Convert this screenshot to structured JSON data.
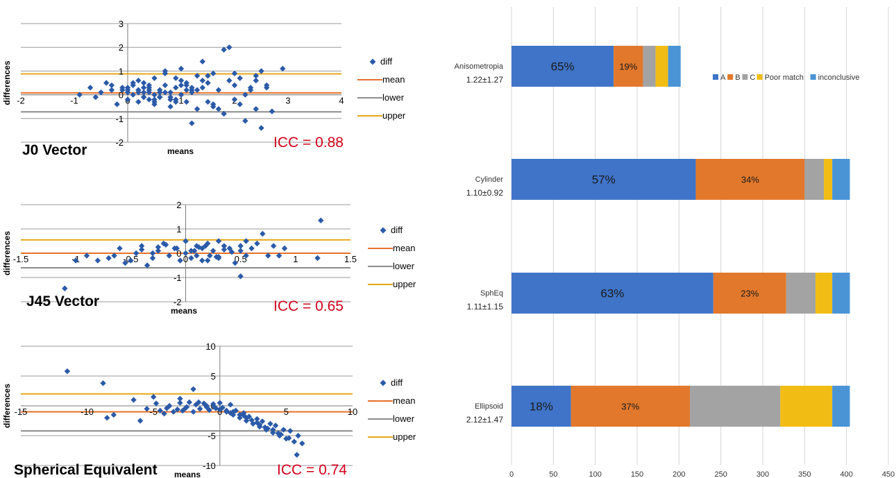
{
  "chart_data": [
    {
      "type": "scatter",
      "title": "J0 Vector",
      "xlabel": "means",
      "ylabel": "differences",
      "annotation": "ICC = 0.88",
      "xlim": [
        -2,
        4
      ],
      "ylim": [
        -2,
        3
      ],
      "xticks": [
        "-2",
        "-1",
        "0",
        "1",
        "2",
        "3",
        "4"
      ],
      "yticks": [
        "-2",
        "-1",
        "0",
        "1",
        "2",
        "3"
      ],
      "legend": [
        "diff",
        "mean",
        "lower",
        "upper"
      ],
      "lines": {
        "mean": 0.08,
        "lower": -0.72,
        "upper": 0.88
      },
      "colors": {
        "diff": "#2b5aa8",
        "mean": "#e8702a",
        "lower": "#8c8c8c",
        "upper": "#e6a817"
      },
      "x": [
        -0.9,
        -0.7,
        -0.6,
        -0.4,
        -0.3,
        -0.2,
        -0.1,
        0.0,
        0.0,
        0.1,
        0.1,
        0.2,
        0.2,
        0.2,
        0.3,
        0.3,
        0.3,
        0.4,
        0.4,
        0.5,
        0.5,
        0.5,
        0.6,
        0.6,
        0.7,
        0.7,
        0.8,
        0.8,
        0.9,
        0.9,
        1.0,
        1.0,
        1.0,
        1.1,
        1.1,
        1.2,
        1.2,
        1.3,
        1.3,
        1.4,
        1.4,
        1.5,
        1.6,
        1.6,
        1.7,
        1.8,
        1.9,
        2.0,
        2.0,
        2.1,
        2.2,
        2.3,
        2.4,
        2.4,
        2.5,
        2.6,
        2.7,
        2.9,
        1.0,
        1.1,
        0.6,
        0.3,
        -0.3,
        0.2,
        0.4,
        0.8,
        1.2,
        1.5,
        1.8,
        2.1,
        2.4,
        2.5,
        0.9,
        1.3,
        0.7,
        -0.5,
        0.0,
        0.1,
        0.5,
        1.9,
        1.0,
        1.6,
        0.2,
        0.4,
        0.8,
        1.4,
        2.2,
        0.3,
        0.6,
        1.1,
        -0.1,
        2.3,
        2.6,
        0.5,
        0.9,
        1.2,
        1.7,
        0.0,
        0.4,
        0.7,
        1.5,
        2.0
      ],
      "y": [
        0.0,
        0.3,
        -0.1,
        0.5,
        0.2,
        -0.4,
        0.3,
        0.1,
        -0.2,
        0.4,
        0.0,
        0.2,
        -0.3,
        0.6,
        0.1,
        -0.1,
        0.5,
        0.3,
        -0.2,
        0.0,
        0.7,
        -0.4,
        0.2,
        -0.1,
        0.4,
        0.9,
        0.1,
        -0.5,
        0.3,
        -0.2,
        0.6,
        0.0,
        1.1,
        -0.3,
        0.4,
        0.2,
        -1.2,
        0.8,
        -0.6,
        1.4,
        0.3,
        0.5,
        -0.4,
        0.9,
        0.2,
        -0.8,
        0.6,
        0.4,
        -0.2,
        0.7,
        -1.1,
        0.3,
        0.8,
        -0.6,
        1.0,
        0.4,
        -0.7,
        1.1,
        0.0,
        0.2,
        0.1,
        -0.1,
        0.4,
        0.2,
        0.1,
        -0.1,
        0.3,
        0.8,
        1.9,
        -0.4,
        0.6,
        -1.4,
        -0.3,
        0.2,
        1.0,
        0.1,
        0.3,
        0.5,
        -0.3,
        2.0,
        0.4,
        -0.5,
        0.1,
        0.2,
        -0.2,
        0.6,
        0.0,
        0.3,
        -0.1,
        0.5,
        0.2,
        0.2,
        0.3,
        -0.2,
        0.7,
        0.1,
        -0.6,
        0.2,
        0.4,
        0.1,
        -0.3,
        0.9
      ]
    },
    {
      "type": "scatter",
      "title": "J45 Vector",
      "xlabel": "means",
      "ylabel": "differences",
      "annotation": "ICC = 0.65",
      "xlim": [
        -1.5,
        1.5
      ],
      "ylim": [
        -2,
        2
      ],
      "xticks": [
        "-1.5",
        "-1",
        "-0.5",
        "0",
        "0.5",
        "1",
        "1.5"
      ],
      "yticks": [
        "-2",
        "-1",
        "0",
        "1",
        "2"
      ],
      "legend": [
        "diff",
        "mean",
        "lower",
        "upper"
      ],
      "lines": {
        "mean": 0.0,
        "lower": -0.6,
        "upper": 0.55
      },
      "colors": {
        "diff": "#2b5aa8",
        "mean": "#e8702a",
        "lower": "#8c8c8c",
        "upper": "#e6a817"
      },
      "x": [
        -1.0,
        -0.9,
        -0.8,
        -0.7,
        -0.65,
        -0.6,
        -0.55,
        -0.5,
        -0.45,
        -0.4,
        -0.35,
        -0.3,
        -0.25,
        -0.2,
        -0.15,
        -0.1,
        -0.05,
        0.0,
        0.0,
        0.05,
        0.1,
        0.1,
        0.15,
        0.2,
        0.2,
        0.25,
        0.3,
        0.3,
        0.35,
        0.4,
        0.45,
        0.5,
        0.5,
        0.55,
        0.6,
        0.7,
        0.75,
        0.8,
        0.85,
        0.9,
        1.2,
        1.23,
        -1.1,
        0.5,
        -0.3,
        0.05,
        0.12,
        0.22,
        0.35,
        -0.18,
        0.28,
        0.65,
        -0.08,
        0.15,
        -0.4,
        0.42,
        0.08,
        0.18,
        0.3,
        -0.25,
        0.55
      ],
      "y": [
        -0.3,
        -0.1,
        -0.3,
        -0.2,
        -0.1,
        0.2,
        -0.4,
        -0.3,
        0.0,
        0.3,
        -0.5,
        -0.2,
        0.1,
        0.4,
        -0.1,
        0.2,
        -0.3,
        0.0,
        0.5,
        -0.2,
        0.3,
        -0.1,
        0.2,
        0.4,
        -0.3,
        0.1,
        0.5,
        -0.2,
        0.3,
        0.2,
        -0.4,
        0.1,
        0.3,
        -0.1,
        0.2,
        0.8,
        -0.1,
        0.3,
        -0.1,
        0.2,
        -0.2,
        1.35,
        -1.45,
        -0.95,
        0.0,
        0.1,
        0.25,
        -0.1,
        0.15,
        0.35,
        -0.15,
        0.4,
        0.2,
        -0.3,
        0.15,
        0.05,
        0.1,
        0.3,
        -0.15,
        0.25,
        0.5
      ]
    },
    {
      "type": "scatter",
      "title": "Spherical Equivalent",
      "xlabel": "means",
      "ylabel": "differences",
      "annotation": "ICC = 0.74",
      "xlim": [
        -15,
        10
      ],
      "ylim": [
        -10,
        10
      ],
      "xticks": [
        "-15",
        "-10",
        "-5",
        "0",
        "5",
        "10"
      ],
      "yticks": [
        "-10",
        "-5",
        "0",
        "5",
        "10"
      ],
      "legend": [
        "diff",
        "mean",
        "lower",
        "upper"
      ],
      "lines": {
        "mean": -1.0,
        "lower": -4.2,
        "upper": 2.0
      },
      "colors": {
        "diff": "#2b5aa8",
        "mean": "#e8702a",
        "lower": "#8c8c8c",
        "upper": "#e6a817"
      },
      "x": [
        -11.5,
        -8.8,
        -8.5,
        -8.0,
        -6.5,
        -5.5,
        -5.0,
        -4.5,
        -4.2,
        -4.0,
        -3.8,
        -3.5,
        -3.2,
        -3.0,
        -2.8,
        -2.5,
        -2.3,
        -2.0,
        -1.8,
        -1.5,
        -1.2,
        -1.0,
        -0.8,
        -0.5,
        -0.3,
        0.0,
        0.2,
        0.5,
        0.8,
        1.0,
        1.2,
        1.5,
        1.8,
        2.0,
        2.2,
        2.5,
        2.8,
        3.0,
        3.2,
        3.5,
        3.8,
        4.0,
        4.2,
        4.5,
        4.8,
        5.0,
        5.3,
        5.6,
        5.9,
        6.2,
        -2.0,
        -6.0,
        -3.0,
        0.5,
        1.5,
        2.8,
        3.6,
        4.4,
        5.2,
        5.8,
        -1.0,
        0.0,
        1.0,
        2.0,
        3.0,
        4.0,
        -4.8,
        -2.6,
        -0.4,
        0.8,
        2.4,
        3.4,
        4.6,
        1.8,
        -1.6
      ],
      "y": [
        5.8,
        3.8,
        -2.0,
        -1.5,
        1.0,
        -0.5,
        1.5,
        -0.8,
        -1.3,
        -0.4,
        0.0,
        -1.0,
        -0.6,
        0.5,
        -0.8,
        -0.2,
        0.6,
        -1.0,
        0.2,
        -0.5,
        0.4,
        -0.2,
        -0.7,
        0.3,
        -0.4,
        0.5,
        -0.3,
        -1.0,
        0.2,
        -1.5,
        -0.8,
        -2.0,
        -1.2,
        -2.5,
        -1.8,
        -3.0,
        -2.2,
        -3.5,
        -2.6,
        -4.0,
        -3.0,
        -4.5,
        -3.3,
        -5.0,
        -4.0,
        -5.5,
        -4.2,
        -6.0,
        -5.0,
        -6.3,
        2.8,
        -2.5,
        1.2,
        -0.8,
        -1.5,
        -2.8,
        -3.8,
        -4.6,
        -5.4,
        -8.2,
        0.0,
        -0.6,
        -1.0,
        -2.0,
        -3.2,
        -4.0,
        0.4,
        -0.4,
        -0.2,
        -1.2,
        -2.4,
        -3.6,
        -4.8,
        -1.6,
        0.6
      ]
    },
    {
      "type": "bar",
      "orientation": "horizontal",
      "stacked": true,
      "categories": [
        "Anisometropia",
        "Cylinder",
        "SphEq",
        "Ellipsoid"
      ],
      "category_sublabels": [
        "1.22±1.27",
        "1.10±0.92",
        "1.11±1.15",
        "2.12±1.47"
      ],
      "xlim": [
        0,
        450
      ],
      "xticks": [
        "0",
        "50",
        "100",
        "150",
        "200",
        "250",
        "300",
        "350",
        "400",
        "450"
      ],
      "legend_placement": "top-right",
      "grid": true,
      "series": [
        {
          "name": "A",
          "color": "#3f74c8",
          "values": [
            122,
            220,
            241,
            71
          ],
          "labels": [
            "65%",
            "57%",
            "63%",
            "18%"
          ]
        },
        {
          "name": "B",
          "color": "#e2782b",
          "values": [
            35,
            130,
            87,
            142
          ],
          "labels": [
            "19%",
            "34%",
            "23%",
            "37%"
          ]
        },
        {
          "name": "C",
          "color": "#a3a3a3",
          "values": [
            15,
            23,
            35,
            108
          ],
          "labels": [
            "",
            "",
            "",
            ""
          ]
        },
        {
          "name": "Poor match",
          "color": "#f1bd14",
          "values": [
            15,
            10,
            20,
            62
          ],
          "labels": [
            "",
            "",
            "",
            ""
          ]
        },
        {
          "name": "inconclusive",
          "color": "#4a94d6",
          "values": [
            15,
            21,
            21,
            21
          ],
          "labels": [
            "",
            "",
            "",
            ""
          ]
        }
      ]
    }
  ]
}
